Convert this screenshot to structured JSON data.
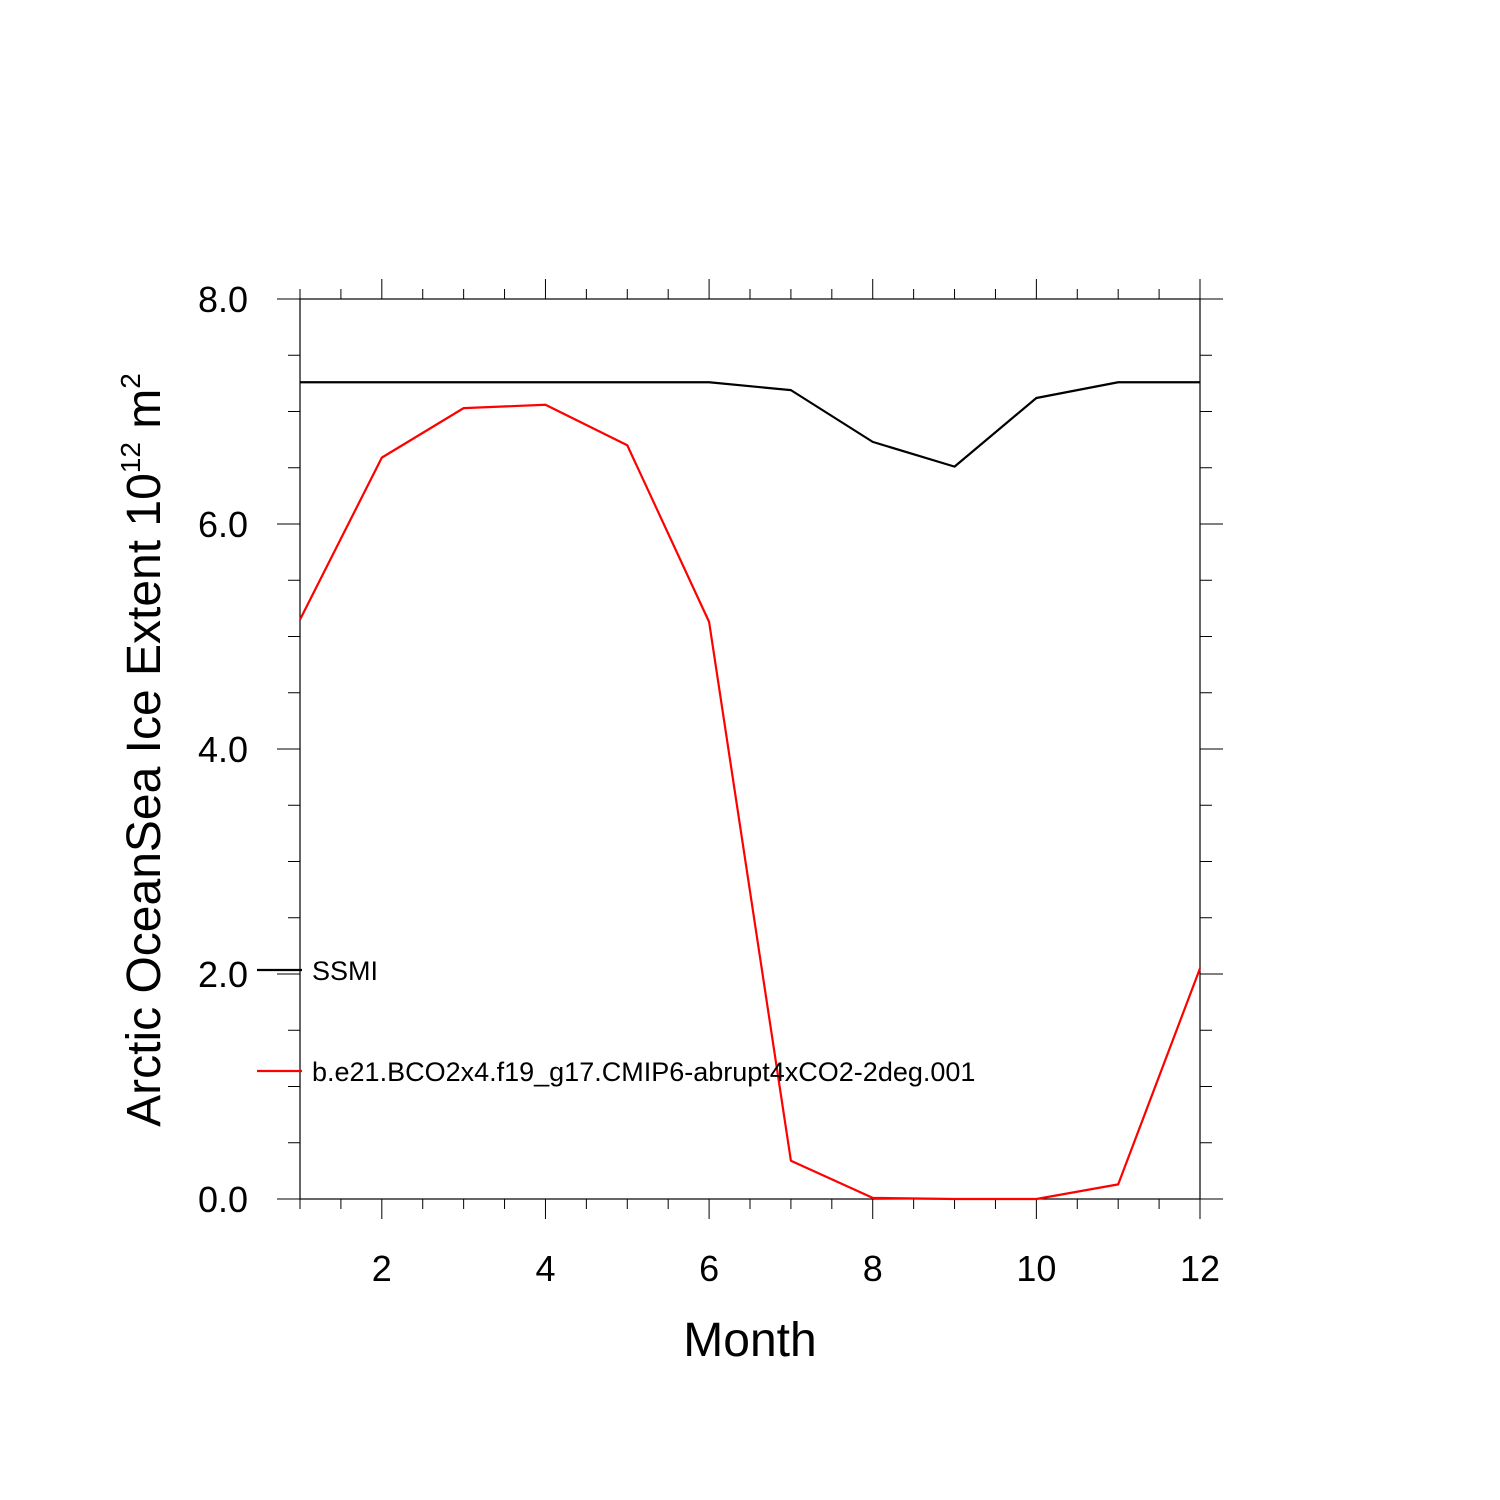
{
  "chart_data": {
    "type": "line",
    "xlabel": "Month",
    "ylabel": {
      "text": "Arctic OceanSea Ice Extent 10",
      "exponent": "12",
      "unit": " m",
      "unit_exponent": "2"
    },
    "xlim": [
      1,
      12
    ],
    "ylim": [
      0,
      8
    ],
    "x_ticks": [
      2,
      4,
      6,
      8,
      10,
      12
    ],
    "x_tick_labels": [
      "2",
      "4",
      "6",
      "8",
      "10",
      "12"
    ],
    "y_ticks": [
      0,
      2,
      4,
      6,
      8
    ],
    "y_tick_labels": [
      "0.0",
      "2.0",
      "4.0",
      "6.0",
      "8.0"
    ],
    "grid": false,
    "legend_position": "left-inside",
    "x": [
      1,
      2,
      3,
      4,
      5,
      6,
      7,
      8,
      9,
      10,
      11,
      12
    ],
    "series": [
      {
        "name": "SSMI",
        "color": "#000000",
        "values": [
          7.26,
          7.26,
          7.26,
          7.26,
          7.26,
          7.26,
          7.19,
          6.73,
          6.51,
          7.12,
          7.26,
          7.26
        ]
      },
      {
        "name": "b.e21.BCO2x4.f19_g17.CMIP6-abrupt4xCO2-2deg.001",
        "color": "#ff0000",
        "values": [
          5.15,
          6.59,
          7.03,
          7.06,
          6.7,
          5.13,
          0.34,
          0.01,
          0.0,
          0.0,
          0.13,
          2.05
        ]
      }
    ]
  }
}
